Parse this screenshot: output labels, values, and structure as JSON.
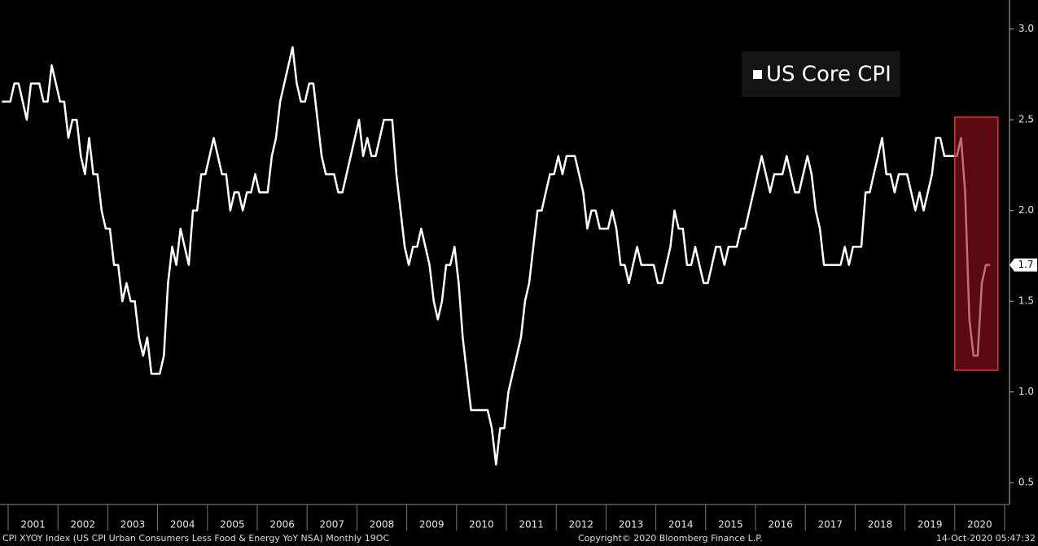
{
  "chart_data": {
    "type": "line",
    "years": [
      "2001",
      "2002",
      "2003",
      "2004",
      "2005",
      "2006",
      "2007",
      "2008",
      "2009",
      "2010",
      "2011",
      "2012",
      "2013",
      "2014",
      "2015",
      "2016",
      "2017",
      "2018",
      "2019",
      "2020"
    ],
    "ylim": [
      0.38,
      3.16
    ],
    "yticks": [
      {
        "value": 3,
        "label": "3.0"
      },
      2.5,
      {
        "value": 2,
        "label": "2.0"
      },
      1.5,
      {
        "value": 1,
        "label": "1.0"
      },
      0.5
    ],
    "series": [
      {
        "name": "US Core CPI",
        "color": "#ffffff",
        "values": [
          2.6,
          2.6,
          2.6,
          2.7,
          2.7,
          2.6,
          2.5,
          2.7,
          2.7,
          2.7,
          2.6,
          2.6,
          2.8,
          2.7,
          2.6,
          2.6,
          2.4,
          2.5,
          2.5,
          2.3,
          2.2,
          2.4,
          2.2,
          2.2,
          2.0,
          1.9,
          1.9,
          1.7,
          1.7,
          1.5,
          1.6,
          1.5,
          1.5,
          1.3,
          1.2,
          1.3,
          1.1,
          1.1,
          1.1,
          1.2,
          1.6,
          1.8,
          1.7,
          1.9,
          1.8,
          1.7,
          2.0,
          2.0,
          2.2,
          2.2,
          2.3,
          2.4,
          2.3,
          2.2,
          2.2,
          2.0,
          2.1,
          2.1,
          2.0,
          2.1,
          2.1,
          2.2,
          2.1,
          2.1,
          2.1,
          2.3,
          2.4,
          2.6,
          2.7,
          2.8,
          2.9,
          2.7,
          2.6,
          2.6,
          2.7,
          2.7,
          2.5,
          2.3,
          2.2,
          2.2,
          2.2,
          2.1,
          2.1,
          2.2,
          2.3,
          2.4,
          2.5,
          2.3,
          2.4,
          2.3,
          2.3,
          2.4,
          2.5,
          2.5,
          2.5,
          2.2,
          2.0,
          1.8,
          1.7,
          1.8,
          1.8,
          1.9,
          1.8,
          1.7,
          1.5,
          1.4,
          1.5,
          1.7,
          1.7,
          1.8,
          1.6,
          1.3,
          1.1,
          0.9,
          0.9,
          0.9,
          0.9,
          0.9,
          0.8,
          0.6,
          0.8,
          0.8,
          1.0,
          1.1,
          1.2,
          1.3,
          1.5,
          1.6,
          1.8,
          2.0,
          2.0,
          2.1,
          2.2,
          2.2,
          2.3,
          2.2,
          2.3,
          2.3,
          2.3,
          2.2,
          2.1,
          1.9,
          2.0,
          2.0,
          1.9,
          1.9,
          1.9,
          2.0,
          1.9,
          1.7,
          1.7,
          1.6,
          1.7,
          1.8,
          1.7,
          1.7,
          1.7,
          1.7,
          1.6,
          1.6,
          1.7,
          1.8,
          2.0,
          1.9,
          1.9,
          1.7,
          1.7,
          1.8,
          1.7,
          1.6,
          1.6,
          1.7,
          1.8,
          1.8,
          1.7,
          1.8,
          1.8,
          1.8,
          1.9,
          1.9,
          2.0,
          2.1,
          2.2,
          2.3,
          2.2,
          2.1,
          2.2,
          2.2,
          2.2,
          2.3,
          2.2,
          2.1,
          2.1,
          2.2,
          2.3,
          2.2,
          2.0,
          1.9,
          1.7,
          1.7,
          1.7,
          1.7,
          1.7,
          1.8,
          1.7,
          1.8,
          1.8,
          1.8,
          2.1,
          2.1,
          2.2,
          2.3,
          2.4,
          2.2,
          2.2,
          2.1,
          2.2,
          2.2,
          2.2,
          2.1,
          2.0,
          2.1,
          2.0,
          2.1,
          2.2,
          2.4,
          2.4,
          2.3,
          2.3,
          2.3,
          2.3,
          2.4,
          2.1,
          1.4,
          1.2,
          1.2,
          1.6,
          1.7,
          1.7
        ]
      }
    ],
    "source": "CPI XYOY Index (US CPI Urban Consumers Less Food & Energy YoY NSA)  Monthly 19OC",
    "copyright": "Copyright© 2020 Bloomberg Finance L.P.",
    "timestamp": "14-Oct-2020 05:47:32"
  }
}
